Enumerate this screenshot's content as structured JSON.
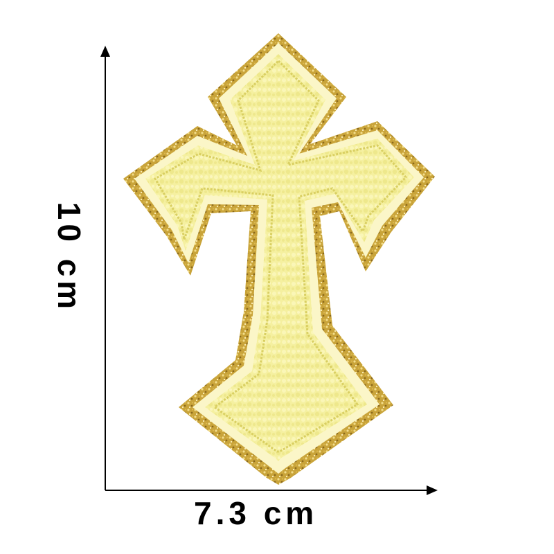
{
  "dimensions": {
    "height_label": "10 cm",
    "width_label": "7.3 cm"
  },
  "patch": {
    "icon": "cross-icon",
    "fill_color": "#f5f0a0",
    "fill_shadow_color": "#e8df7a",
    "stitch_color": "#d9cf62",
    "edge_color": "#fbf6c8",
    "glitter_color": "#c9a43a",
    "glitter_highlight_color": "#f3dd8a"
  },
  "axis_color": "#000000"
}
